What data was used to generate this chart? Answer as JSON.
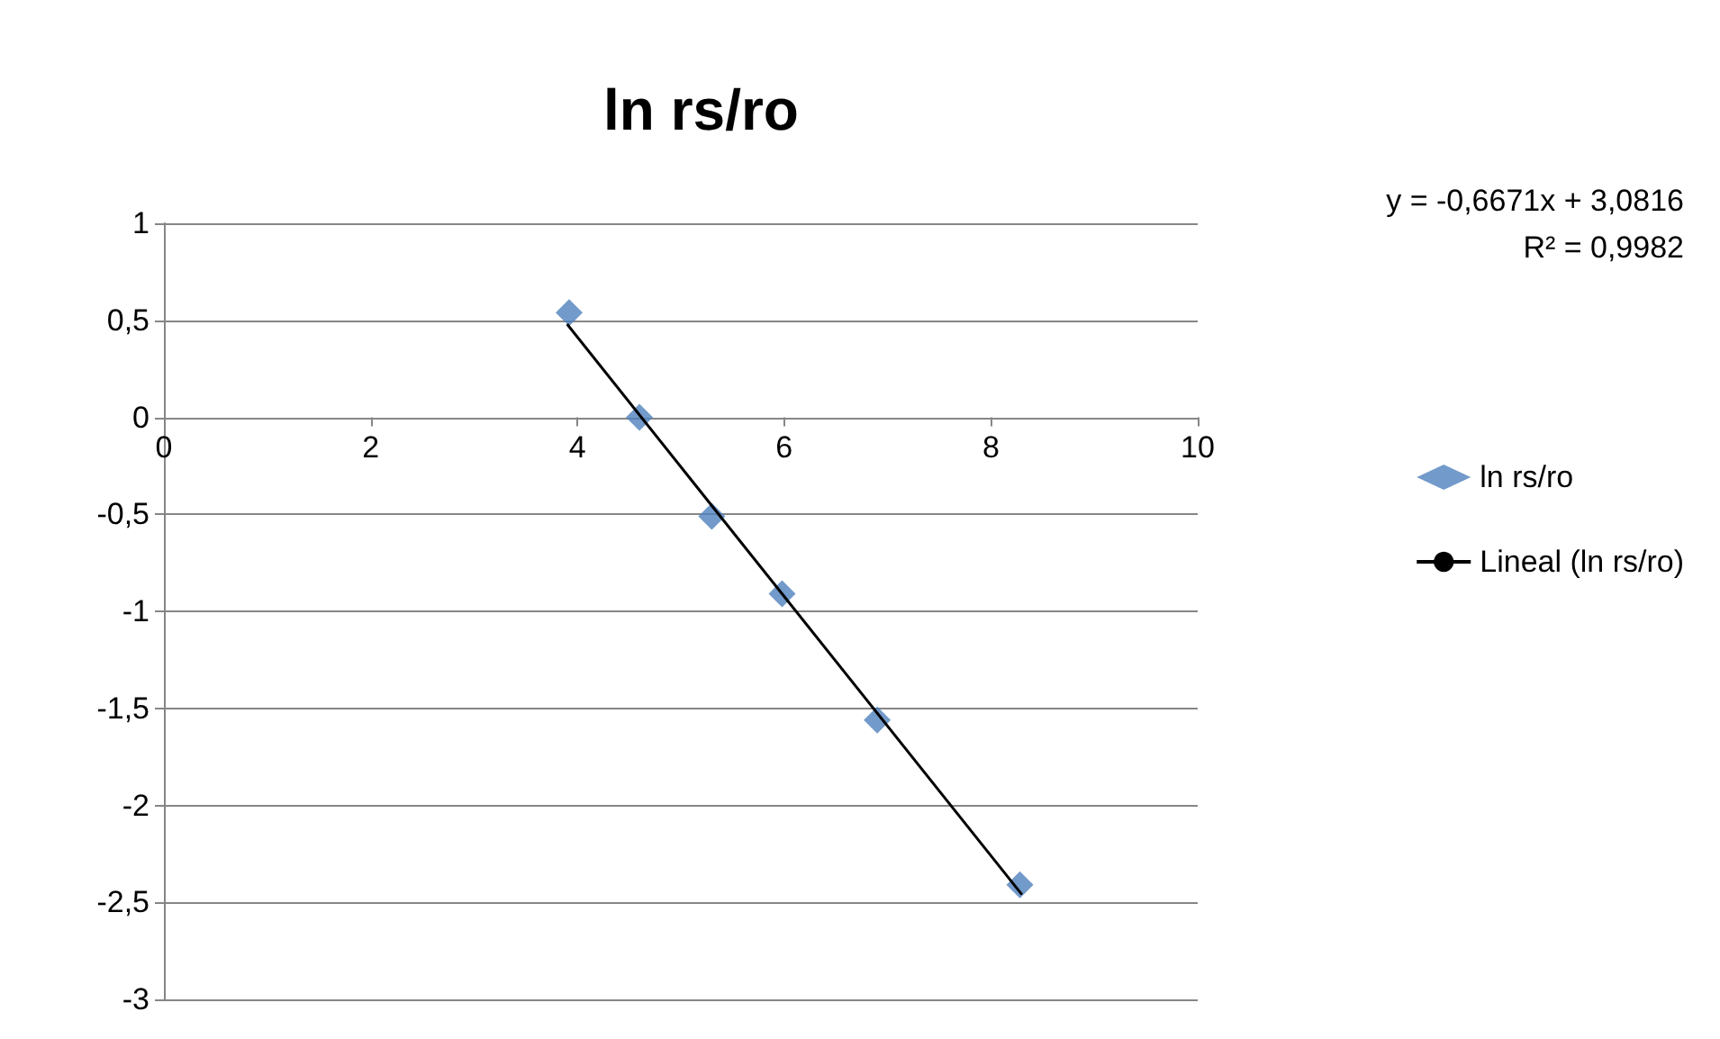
{
  "chart_data": {
    "type": "scatter",
    "title": "ln rs/ro",
    "series": [
      {
        "name": "ln rs/ro",
        "color": "#4f81bd",
        "marker": "diamond",
        "x": [
          3.92,
          4.6,
          5.3,
          5.98,
          6.9,
          8.28
        ],
        "values": [
          0.54,
          0,
          -0.51,
          -0.91,
          -1.56,
          -2.41
        ]
      },
      {
        "name": "Lineal (ln rs/ro)",
        "type": "line",
        "color": "#000000",
        "marker": "none",
        "line_style": "solid",
        "x": [
          3.9,
          8.3
        ],
        "values": [
          0.48,
          -2.46
        ]
      }
    ],
    "xlim": [
      0,
      10
    ],
    "xticks": [
      0,
      2,
      4,
      6,
      8,
      10
    ],
    "ylim": [
      -3,
      1
    ],
    "yticks": [
      {
        "value": -3,
        "label": "-3"
      },
      {
        "value": -2.5,
        "label": "-2,5"
      },
      {
        "value": -2,
        "label": "-2"
      },
      {
        "value": -1.5,
        "label": "-1,5"
      },
      {
        "value": -1,
        "label": "-1"
      },
      {
        "value": -0.5,
        "label": "-0,5"
      },
      {
        "value": 0,
        "label": "0"
      },
      {
        "value": 0.5,
        "label": "0,5"
      },
      {
        "value": 1,
        "label": "1"
      }
    ],
    "grid": "y",
    "legend": "right",
    "annotations": [
      "y = -0,6671x + 3,0816",
      "R² = 0,9982"
    ]
  }
}
